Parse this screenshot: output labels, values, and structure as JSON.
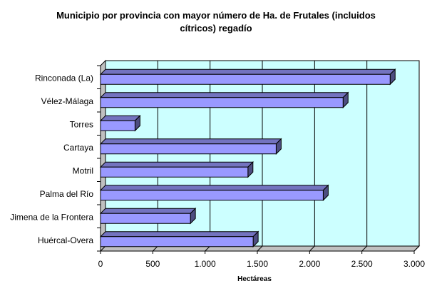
{
  "chart_data": {
    "type": "bar",
    "orientation": "horizontal",
    "title_lines": [
      "Municipio por provincia con mayor número de Ha. de  Frutales (incluidos",
      "cítricos) regadío"
    ],
    "categories": [
      "Rinconada (La)",
      "Vélez-Málaga",
      "Torres",
      "Cartaya",
      "Motril",
      "Palma del Río",
      "Jimena de la Frontera",
      "Huércal-Overa"
    ],
    "values": [
      2770,
      2320,
      330,
      1680,
      1410,
      2130,
      860,
      1460
    ],
    "xlabel": "Hectáreas",
    "ylabel": "",
    "xlim": [
      0,
      3000
    ],
    "x_ticks": [
      0,
      500,
      1000,
      1500,
      2000,
      2500,
      3000
    ],
    "x_tick_labels": [
      "0",
      "500",
      "1.000",
      "1.500",
      "2.000",
      "2.500",
      "3.000"
    ],
    "grid": true,
    "legend": "none",
    "colors": {
      "plot_background": "#ccffff",
      "bar_front": "#9999ff",
      "bar_top": "#7373bf",
      "bar_side": "#4d4d80",
      "wall_floor": "#c0c0c0",
      "grid": "#000000"
    }
  }
}
